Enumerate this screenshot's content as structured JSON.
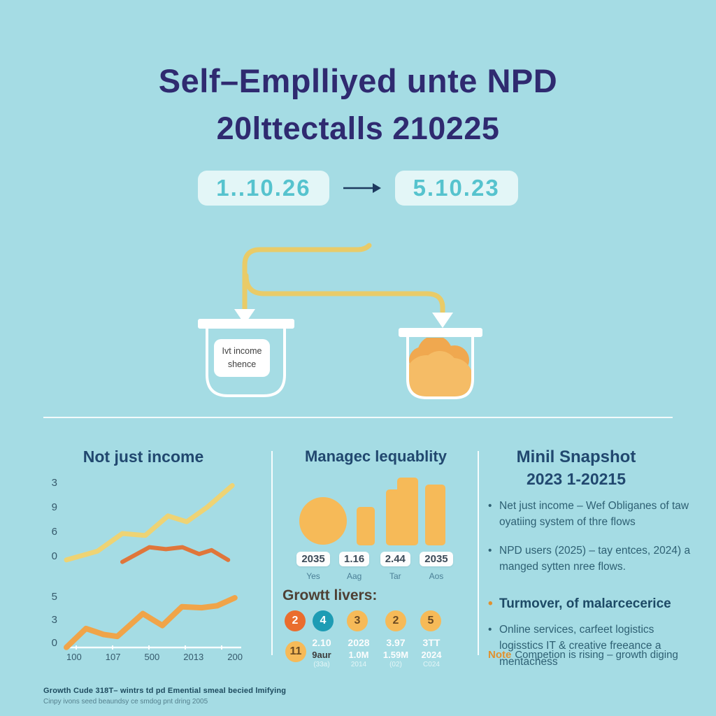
{
  "colors": {
    "bg": "#a5dce4",
    "title": "#2f2a70",
    "heading": "#21486f",
    "badge-bg": "#e3f6f7",
    "badge-text": "#56c3ce",
    "arrow-dark": "#1d3a5f",
    "flow-yellow": "#e9cb68",
    "white": "#ffffff",
    "bar-yellow": "#f6ba58",
    "circle-orange": "#ea6d2e",
    "circle-teal": "#1e9cb4",
    "cloud-light": "#f5bc66",
    "cloud-dark": "#f0a84f",
    "text-teal": "#2e6073",
    "note-orange": "#e0912f",
    "growth-heading": "#4e4034",
    "axis-text": "#35596b",
    "pill-text": "#3c4a57"
  },
  "title": {
    "line1": "Self–Emplliyed unte NPD",
    "line2": "20lttectalls 210225"
  },
  "dates": {
    "from": "1..10.26",
    "to": "5.10.23"
  },
  "flow": {
    "left_bucket_card": {
      "line1": "Ivt income",
      "line2": "shence"
    }
  },
  "left_section": {
    "title": "Not just income",
    "footer_line1": "Growth Cude 318T– wintrs td pd Emential smeal becied lmifying",
    "footer_line2": "Cinpy ivons seed beaundsy ce smdog pnt dring 2005"
  },
  "middle_section": {
    "title": "Managec lequablity",
    "badges": [
      {
        "value": "2035",
        "caption": "Yes"
      },
      {
        "value": "1.16",
        "caption": "Aag"
      },
      {
        "value": "2.44",
        "caption": "Tar"
      },
      {
        "value": "2035",
        "caption": "Aos"
      }
    ],
    "growth_heading": "Growtt livers:",
    "growth_circles": [
      {
        "value": "2",
        "color": "orange"
      },
      {
        "value": "4",
        "color": "teal"
      },
      {
        "value": "3",
        "color": "yellow"
      },
      {
        "value": "2",
        "color": "yellow"
      },
      {
        "value": "5",
        "color": "yellow"
      }
    ],
    "extra_circle": "11",
    "stats": [
      {
        "line1": "2.10",
        "line2": "9aur",
        "line3": "(33a)"
      },
      {
        "line1": "2028",
        "line2": "1.0M",
        "line3": "2014"
      },
      {
        "line1": "3.97",
        "line2": "1.59M",
        "line3": "(02)"
      },
      {
        "line1": "3TT",
        "line2": "2024",
        "line3": "C024"
      }
    ]
  },
  "right_section": {
    "heading1": "Minil Snapshot",
    "heading2": "2023 1-20215",
    "bullets": [
      "Net just income – Wef Obliganes of taw oyatiing system of thre flows",
      "NPD users (2025) – tay entces, 2024) a manged sytten nree flows.",
      "Turmover, of malarcecerice",
      "Online services, carfeet logistics logisstics IT & creative freeance a mentachess"
    ],
    "note_label": "Note",
    "note_text": "Competion is rising – growth diging"
  },
  "chart_data": [
    {
      "type": "line",
      "title": "Not just income",
      "xlim": [
        0,
        8.5
      ],
      "ylim": [
        0,
        10
      ],
      "y_ticks": [
        "3",
        "9",
        "6",
        "0"
      ],
      "grid": false,
      "legend": "none",
      "series": [
        {
          "name": "yellow-line",
          "color": "#eed374",
          "width": 7,
          "points": [
            [
              0,
              0.8
            ],
            [
              1.5,
              1.7
            ],
            [
              2.7,
              3.5
            ],
            [
              3.8,
              3.3
            ],
            [
              4.9,
              5.3
            ],
            [
              5.8,
              4.7
            ],
            [
              6.8,
              6.2
            ],
            [
              8,
              8.4
            ]
          ]
        },
        {
          "name": "orange-line",
          "color": "#e0763a",
          "width": 6,
          "points": [
            [
              2.7,
              0.6
            ],
            [
              4,
              2.1
            ],
            [
              4.8,
              1.9
            ],
            [
              5.6,
              2.1
            ],
            [
              6.4,
              1.4
            ],
            [
              7,
              1.8
            ],
            [
              7.8,
              0.8
            ]
          ]
        }
      ]
    },
    {
      "type": "line",
      "title": "",
      "xlim": [
        0,
        9
      ],
      "ylim": [
        0,
        6.5
      ],
      "y_ticks": [
        "5",
        "3",
        "0"
      ],
      "x_ticks": [
        "100",
        "107",
        "500",
        "2013",
        "200"
      ],
      "grid": false,
      "legend": "none",
      "series": [
        {
          "name": "orange-line",
          "color": "#f0a449",
          "width": 8,
          "points": [
            [
              0,
              0.3
            ],
            [
              1,
              2.2
            ],
            [
              1.9,
              1.6
            ],
            [
              2.6,
              1.4
            ],
            [
              3.9,
              3.7
            ],
            [
              4.9,
              2.5
            ],
            [
              5.9,
              4.4
            ],
            [
              6.9,
              4.3
            ],
            [
              7.7,
              4.5
            ],
            [
              8.6,
              5.3
            ]
          ]
        }
      ]
    },
    {
      "type": "pictogram",
      "elements": [
        "circle",
        "bar-small",
        "bar-step",
        "bar-tall"
      ],
      "badge_values": [
        "2035",
        "1.16",
        "2.44",
        "2035"
      ],
      "captions": [
        "Yes",
        "Aag",
        "Tar",
        "Aos"
      ]
    }
  ]
}
